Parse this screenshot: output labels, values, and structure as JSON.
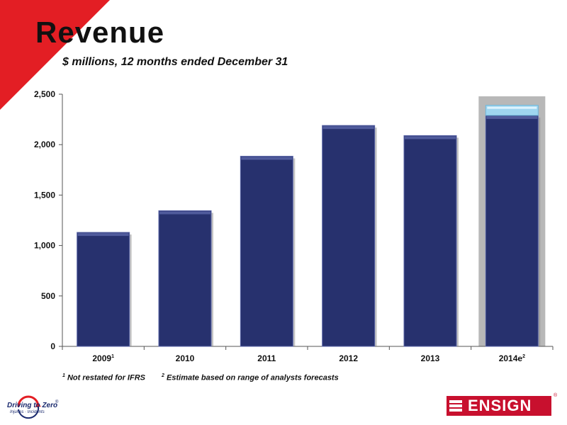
{
  "slide": {
    "title": "Revenue",
    "subtitle": "$ millions, 12 months ended December 31"
  },
  "chart_data": {
    "type": "bar",
    "categories": [
      "2009",
      "2010",
      "2011",
      "2012",
      "2013",
      "2014e"
    ],
    "category_superscripts": [
      "1",
      "",
      "",
      "",
      "",
      "2"
    ],
    "values": [
      1130,
      1345,
      1885,
      2190,
      2090,
      2290
    ],
    "estimate_range": {
      "category": "2014e",
      "low": 2290,
      "high": 2390
    },
    "ylim": [
      0,
      2500
    ],
    "yticks": [
      0,
      500,
      1000,
      1500,
      2000,
      2500
    ],
    "ytick_labels": [
      "0",
      "500",
      "1,000",
      "1,500",
      "2,000",
      "2,500"
    ],
    "xlabel": "",
    "ylabel": "",
    "grid": false,
    "highlight_category": "2014e",
    "colors": {
      "bar": "#27316e",
      "bar_edge": "#5b66a8",
      "estimate_band": "#9fd6f0",
      "highlight_bg": "#b8b8b8"
    }
  },
  "footnotes": [
    {
      "marker": "1",
      "text": "Not restated for IFRS"
    },
    {
      "marker": "2",
      "text": "Estimate based on range of analysts forecasts"
    }
  ],
  "logos": {
    "left": {
      "name": "Driving to Zero",
      "tagline": "Injuries · Incidents"
    },
    "right": {
      "name": "ENSIGN"
    }
  },
  "colors": {
    "accent": "#e31e24",
    "brand_red": "#c8102e",
    "navy": "#1a2a6e"
  }
}
